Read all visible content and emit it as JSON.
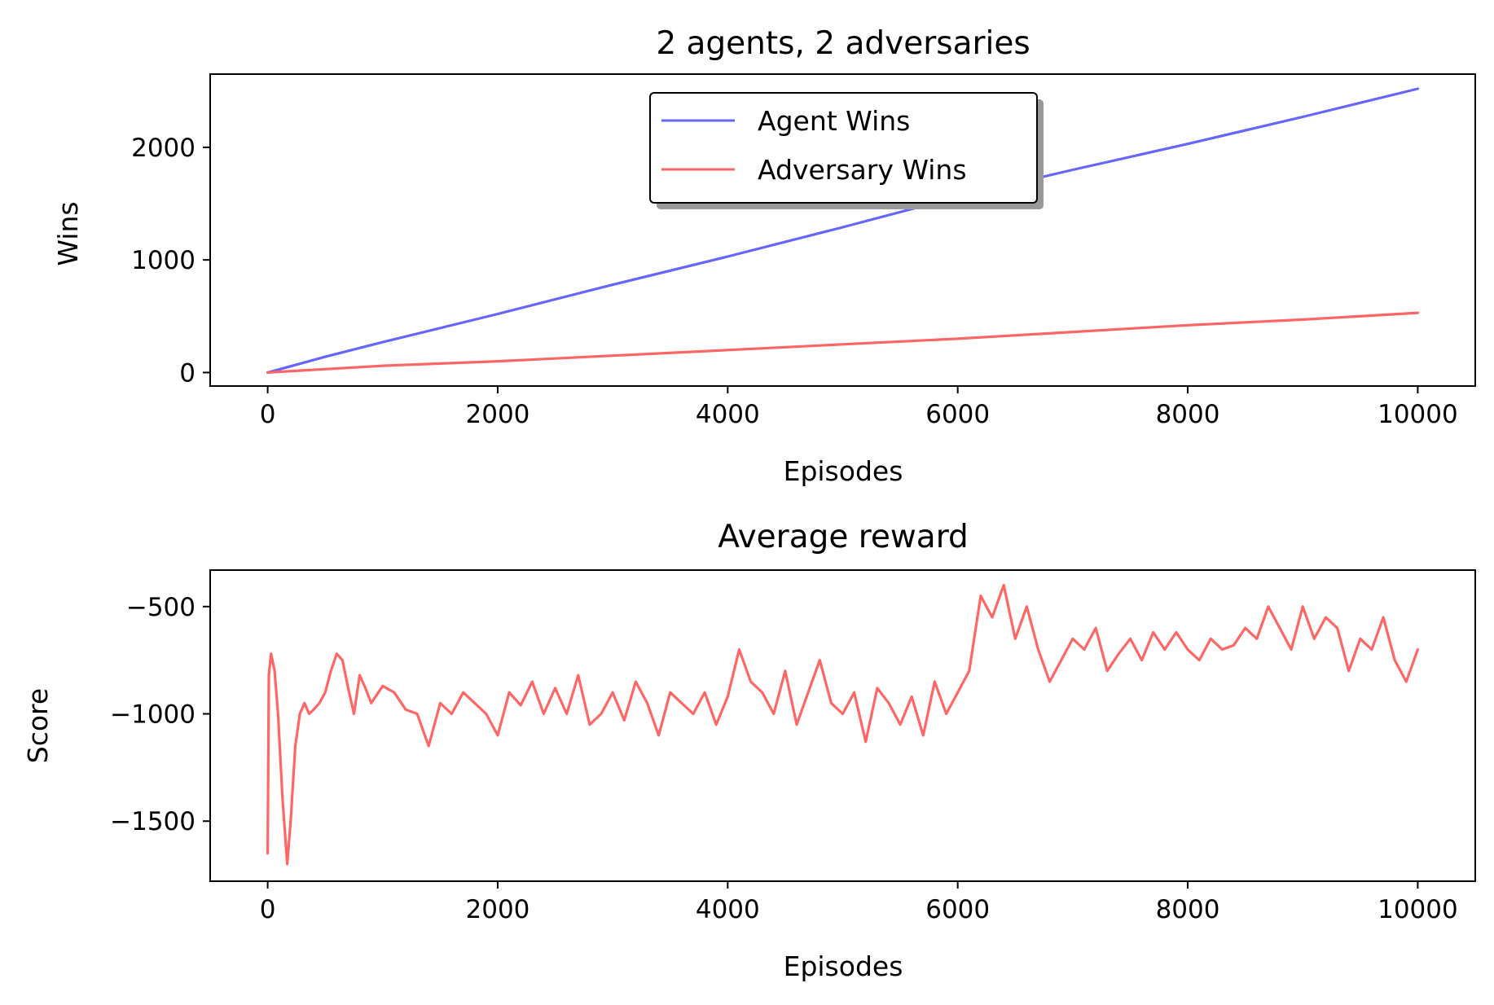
{
  "chart_data": [
    {
      "type": "line",
      "title": "2 agents, 2 adversaries",
      "xlabel": "Episodes",
      "ylabel": "Wins",
      "xlim": [
        -500,
        10500
      ],
      "ylim": [
        -120,
        2650
      ],
      "xticks": [
        0,
        2000,
        4000,
        6000,
        8000,
        10000
      ],
      "yticks": [
        0,
        1000,
        2000
      ],
      "grid": false,
      "legend": "upper-center",
      "series": [
        {
          "name": "Agent Wins",
          "color": "#6666ff",
          "x": [
            0,
            500,
            1000,
            2000,
            3000,
            4000,
            5000,
            6000,
            7000,
            8000,
            9000,
            10000
          ],
          "y": [
            0,
            140,
            270,
            520,
            780,
            1030,
            1290,
            1560,
            1800,
            2030,
            2270,
            2520
          ]
        },
        {
          "name": "Adversary Wins",
          "color": "#ff6666",
          "x": [
            0,
            1000,
            2000,
            3000,
            4000,
            5000,
            6000,
            7000,
            8000,
            9000,
            10000
          ],
          "y": [
            0,
            60,
            100,
            150,
            200,
            250,
            300,
            360,
            420,
            470,
            530
          ]
        }
      ]
    },
    {
      "type": "line",
      "title": "Average reward",
      "xlabel": "Episodes",
      "ylabel": "Score",
      "xlim": [
        -500,
        10500
      ],
      "ylim": [
        -1780,
        -330
      ],
      "xticks": [
        0,
        2000,
        4000,
        6000,
        8000,
        10000
      ],
      "yticks": [
        -500,
        -1000,
        -1500
      ],
      "ytick_labels": [
        "−500",
        "−1000",
        "−1500"
      ],
      "grid": false,
      "series": [
        {
          "color": "#ff6666",
          "x": [
            0,
            10,
            30,
            60,
            90,
            130,
            170,
            200,
            240,
            280,
            320,
            360,
            400,
            450,
            500,
            550,
            600,
            650,
            700,
            750,
            800,
            850,
            900,
            1000,
            1100,
            1200,
            1300,
            1400,
            1500,
            1600,
            1700,
            1800,
            1900,
            2000,
            2100,
            2200,
            2300,
            2400,
            2500,
            2600,
            2700,
            2800,
            2900,
            3000,
            3100,
            3200,
            3300,
            3400,
            3500,
            3600,
            3700,
            3800,
            3900,
            4000,
            4100,
            4200,
            4300,
            4400,
            4500,
            4600,
            4700,
            4800,
            4900,
            5000,
            5100,
            5200,
            5300,
            5400,
            5500,
            5600,
            5700,
            5800,
            5900,
            6000,
            6100,
            6200,
            6300,
            6400,
            6500,
            6600,
            6700,
            6800,
            6900,
            7000,
            7100,
            7200,
            7300,
            7400,
            7500,
            7600,
            7700,
            7800,
            7900,
            8000,
            8100,
            8200,
            8300,
            8400,
            8500,
            8600,
            8700,
            8800,
            8900,
            9000,
            9100,
            9200,
            9300,
            9400,
            9500,
            9600,
            9700,
            9800,
            9900,
            10000
          ],
          "y": [
            -1650,
            -820,
            -720,
            -800,
            -1000,
            -1400,
            -1700,
            -1500,
            -1150,
            -1000,
            -950,
            -1000,
            -980,
            -950,
            -900,
            -800,
            -720,
            -750,
            -880,
            -1000,
            -820,
            -880,
            -950,
            -870,
            -900,
            -980,
            -1000,
            -1150,
            -950,
            -1000,
            -900,
            -950,
            -1000,
            -1100,
            -900,
            -960,
            -850,
            -1000,
            -880,
            -1000,
            -820,
            -1050,
            -1000,
            -900,
            -1030,
            -850,
            -950,
            -1100,
            -900,
            -950,
            -1000,
            -900,
            -1050,
            -920,
            -700,
            -850,
            -900,
            -1000,
            -800,
            -1050,
            -900,
            -750,
            -950,
            -1000,
            -900,
            -1130,
            -880,
            -950,
            -1050,
            -920,
            -1100,
            -850,
            -1000,
            -900,
            -800,
            -450,
            -550,
            -400,
            -650,
            -500,
            -700,
            -850,
            -750,
            -650,
            -700,
            -600,
            -800,
            -720,
            -650,
            -750,
            -620,
            -700,
            -620,
            -700,
            -750,
            -650,
            -700,
            -680,
            -600,
            -650,
            -500,
            -600,
            -700,
            -500,
            -650,
            -550,
            -600,
            -800,
            -650,
            -700,
            -550,
            -750,
            -850,
            -700
          ]
        }
      ]
    }
  ]
}
